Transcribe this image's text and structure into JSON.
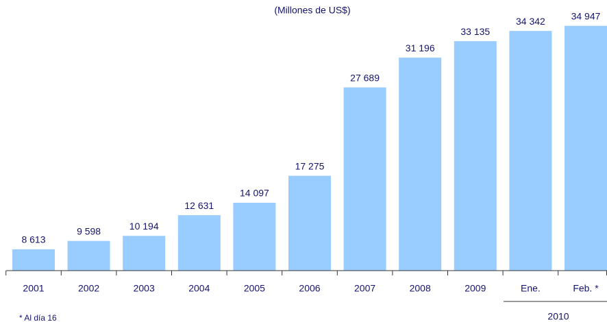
{
  "chart_data": {
    "type": "bar",
    "subtitle": "(Millones de US$)",
    "categories": [
      "2001",
      "2002",
      "2003",
      "2004",
      "2005",
      "2006",
      "2007",
      "2008",
      "2009",
      "Ene.",
      "Feb. *"
    ],
    "values": [
      8613,
      9598,
      10194,
      12631,
      14097,
      17275,
      27689,
      31196,
      33135,
      34342,
      34947
    ],
    "value_labels": [
      "8 613",
      "9 598",
      "10 194",
      "12 631",
      "14 097",
      "17 275",
      "27 689",
      "31 196",
      "33 135",
      "34 342",
      "34 947"
    ],
    "group_label": "2010",
    "footnote": "* Al día 16",
    "color": "#99ccff",
    "ylim": [
      6100,
      35000
    ]
  }
}
